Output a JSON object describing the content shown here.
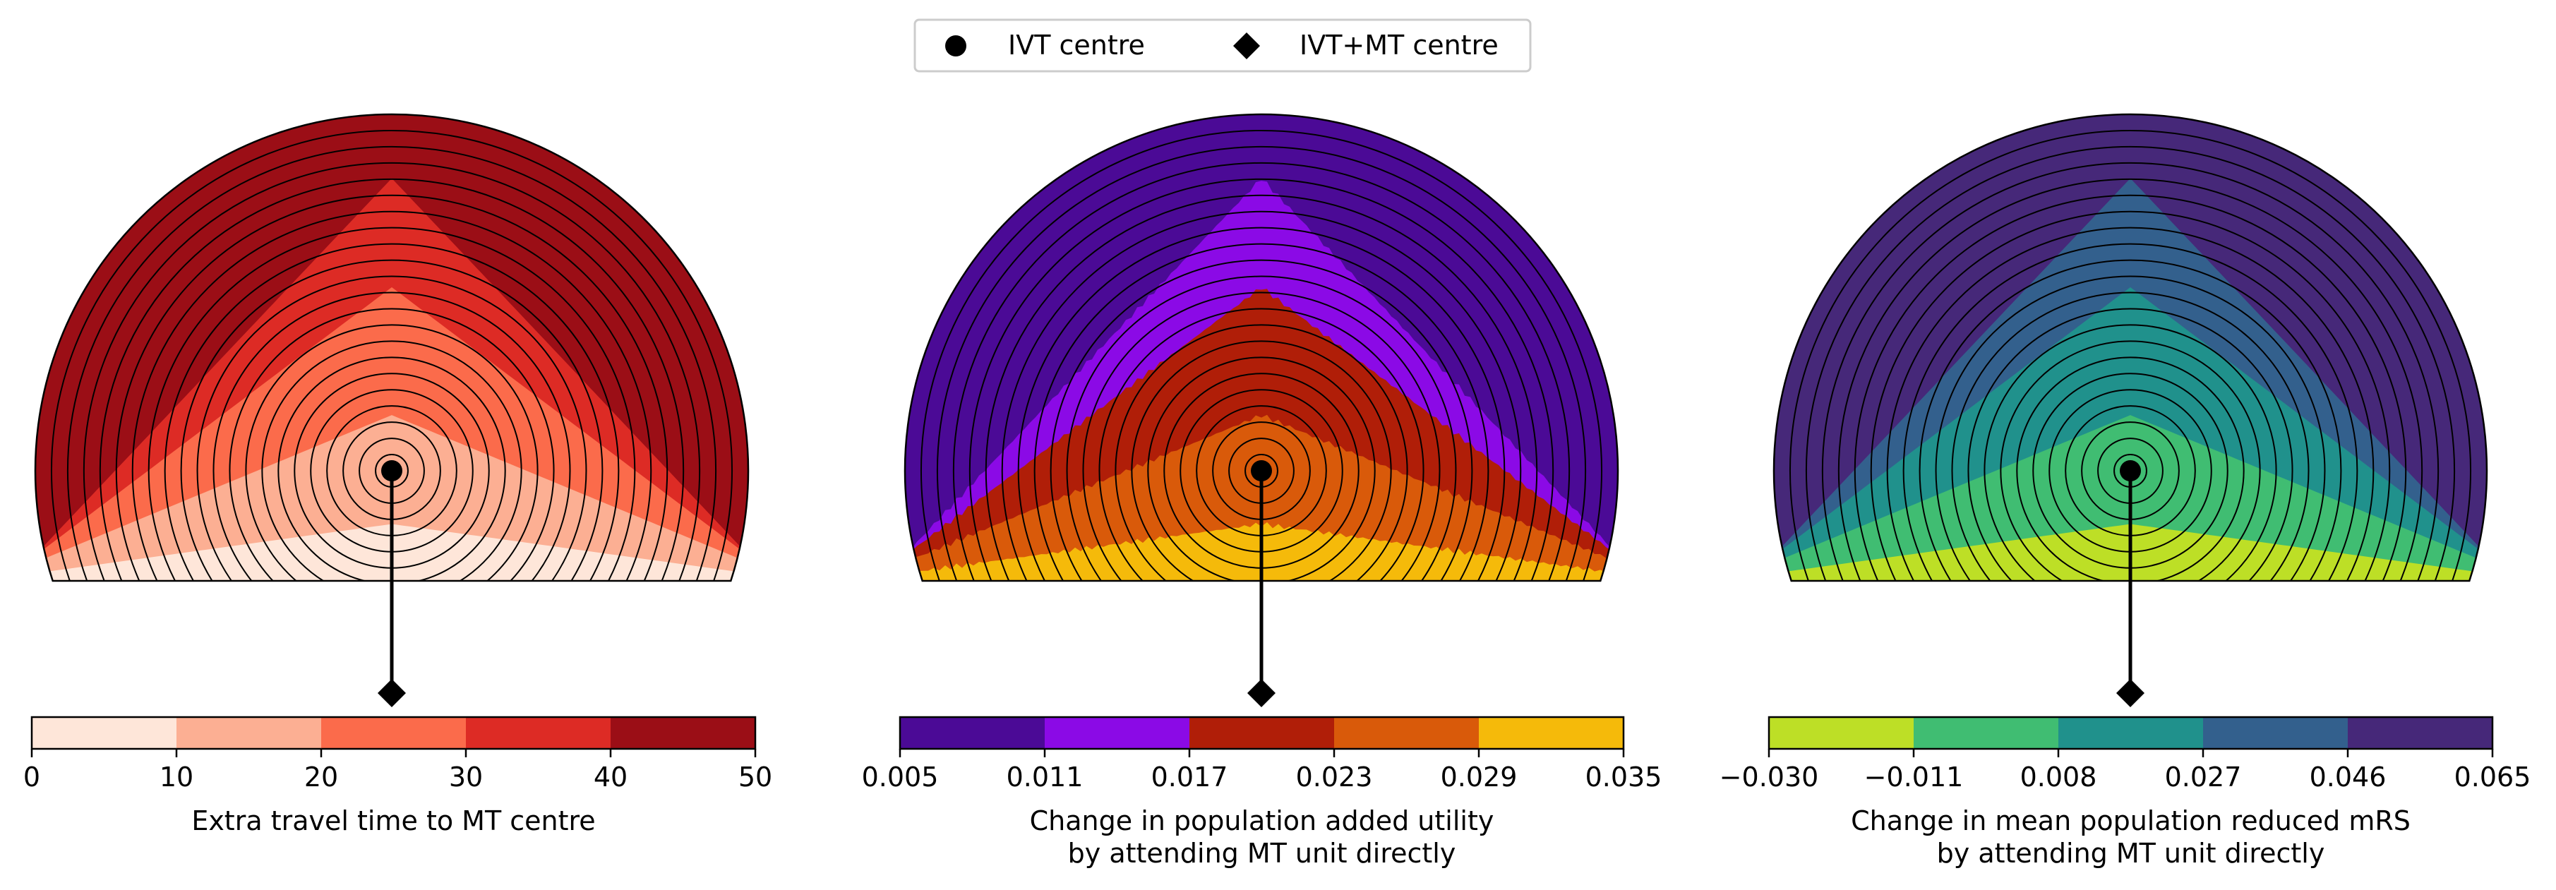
{
  "legend": {
    "items": [
      {
        "marker": "circle",
        "label": "IVT centre"
      },
      {
        "marker": "diamond",
        "label": "IVT+MT centre"
      }
    ],
    "placement": "top-center"
  },
  "chart_data": [
    {
      "type": "heatmap",
      "shape": "semicircle with concentric rings",
      "colorbar": {
        "label_lines": [
          "Extra travel time to MT centre"
        ],
        "ticks": [
          "0",
          "10",
          "20",
          "30",
          "40",
          "50"
        ],
        "bins": [
          [
            0,
            10
          ],
          [
            10,
            20
          ],
          [
            20,
            30
          ],
          [
            30,
            40
          ],
          [
            40,
            50
          ]
        ],
        "colors": [
          "#fee6d9",
          "#fcaf93",
          "#fb6b4b",
          "#dd2b25",
          "#9b0e16"
        ]
      },
      "colormap": "Reds",
      "band_sequence_from_bottom": [
        0,
        1,
        2,
        3,
        4
      ],
      "ivt_centre": "circle marker",
      "mt_centre": "diamond marker below"
    },
    {
      "type": "heatmap",
      "shape": "semicircle with concentric rings",
      "colorbar": {
        "label_lines": [
          "Change in population added utility",
          "by attending MT unit directly"
        ],
        "ticks": [
          "0.005",
          "0.011",
          "0.017",
          "0.023",
          "0.029",
          "0.035"
        ],
        "bins": [
          [
            0.005,
            0.011
          ],
          [
            0.011,
            0.017
          ],
          [
            0.017,
            0.023
          ],
          [
            0.023,
            0.029
          ],
          [
            0.029,
            0.035
          ]
        ],
        "colors": [
          "#4b0a96",
          "#8b0ae6",
          "#b01e08",
          "#d95a0a",
          "#f5ba0a"
        ]
      },
      "colormap": "gnuplot-like",
      "band_sequence_from_bottom": [
        4,
        3,
        2,
        1,
        0
      ],
      "ivt_centre": "circle marker",
      "mt_centre": "diamond marker below"
    },
    {
      "type": "heatmap",
      "shape": "semicircle with concentric rings",
      "colorbar": {
        "label_lines": [
          "Change in mean population reduced mRS",
          "by attending MT unit directly"
        ],
        "ticks": [
          "−0.030",
          "−0.011",
          "0.008",
          "0.027",
          "0.046",
          "0.065"
        ],
        "bins": [
          [
            -0.03,
            -0.011
          ],
          [
            -0.011,
            0.008
          ],
          [
            0.008,
            0.027
          ],
          [
            0.027,
            0.046
          ],
          [
            0.046,
            0.065
          ]
        ],
        "colors": [
          "#bddf26",
          "#40bd72",
          "#20918c",
          "#33608d",
          "#462879"
        ]
      },
      "colormap": "viridis",
      "band_sequence_from_bottom": [
        0,
        1,
        2,
        3,
        4
      ],
      "ivt_centre": "circle marker",
      "mt_centre": "diamond marker below"
    }
  ]
}
